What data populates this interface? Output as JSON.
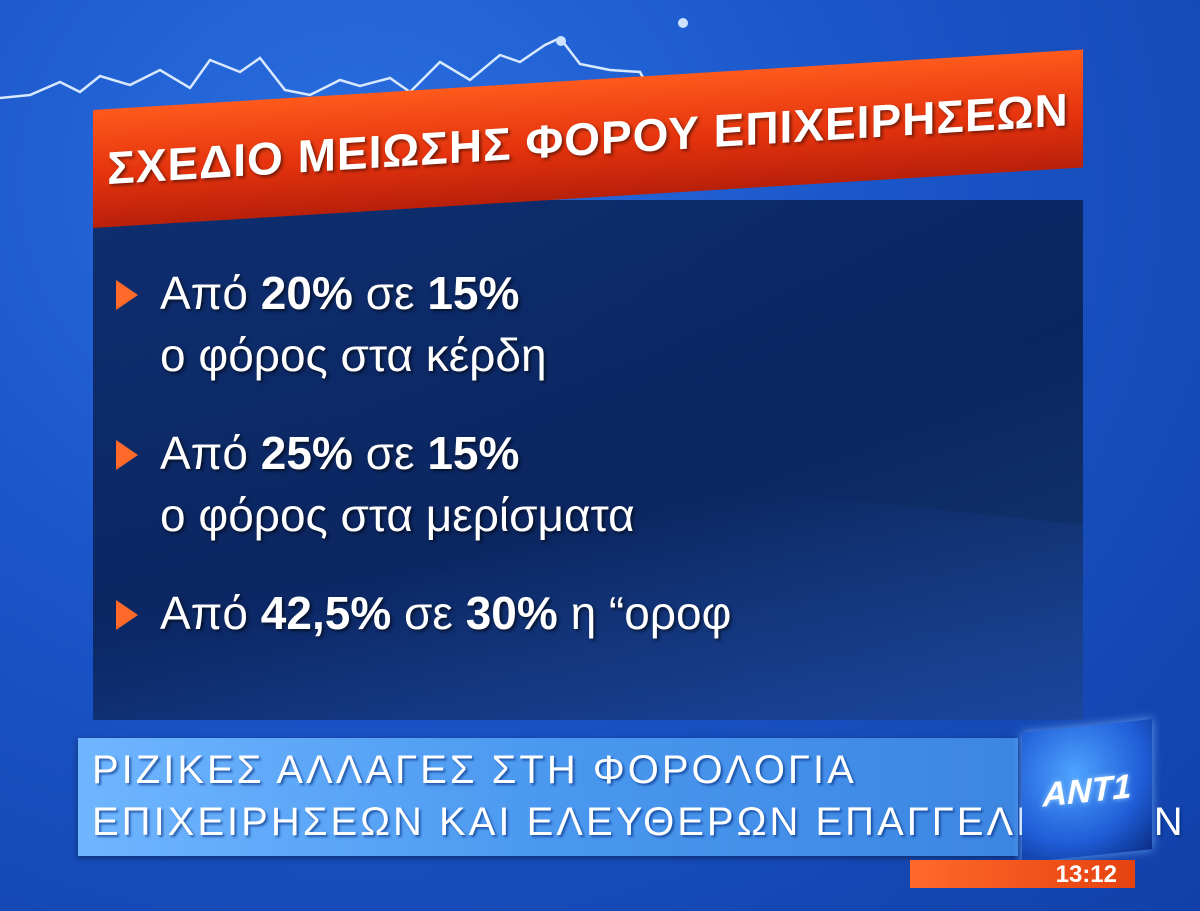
{
  "headline": "ΣΧΕΔΙΟ ΜΕΙΩΣΗΣ ΦΟΡΟΥ ΕΠΙΧΕΙΡΗΣΕΩΝ",
  "bullets": [
    {
      "prefix": "Από",
      "from": "20%",
      "mid": "σε",
      "to": "15%",
      "line2": "ο φόρος στα κέρδη"
    },
    {
      "prefix": "Από",
      "from": "25%",
      "mid": "σε",
      "to": "15%",
      "line2": "ο φόρος στα μερίσματα"
    },
    {
      "prefix": "Από",
      "from": "42,5%",
      "mid": "σε",
      "to": "30%",
      "suffix": "η “οροφ",
      "line2": ""
    }
  ],
  "caption": {
    "line1": "ΡΙΖΙΚΕΣ ΑΛΛΑΓΕΣ ΣΤΗ ΦΟΡΟΛΟΓΙΑ",
    "line2": "ΕΠΙΧΕΙΡΗΣΕΩΝ ΚΑΙ ΕΛΕΥΘΕΡΩΝ ΕΠΑΓΓΕΛΜΑΤΙΩΝ"
  },
  "channel_logo": "ANT1",
  "clock": "13:12",
  "colors": {
    "headline_bar": "#e5330e",
    "caption_bar": "#4a98f0",
    "bullet_arrow": "#ff6a2a",
    "background": "#1a55c8"
  }
}
